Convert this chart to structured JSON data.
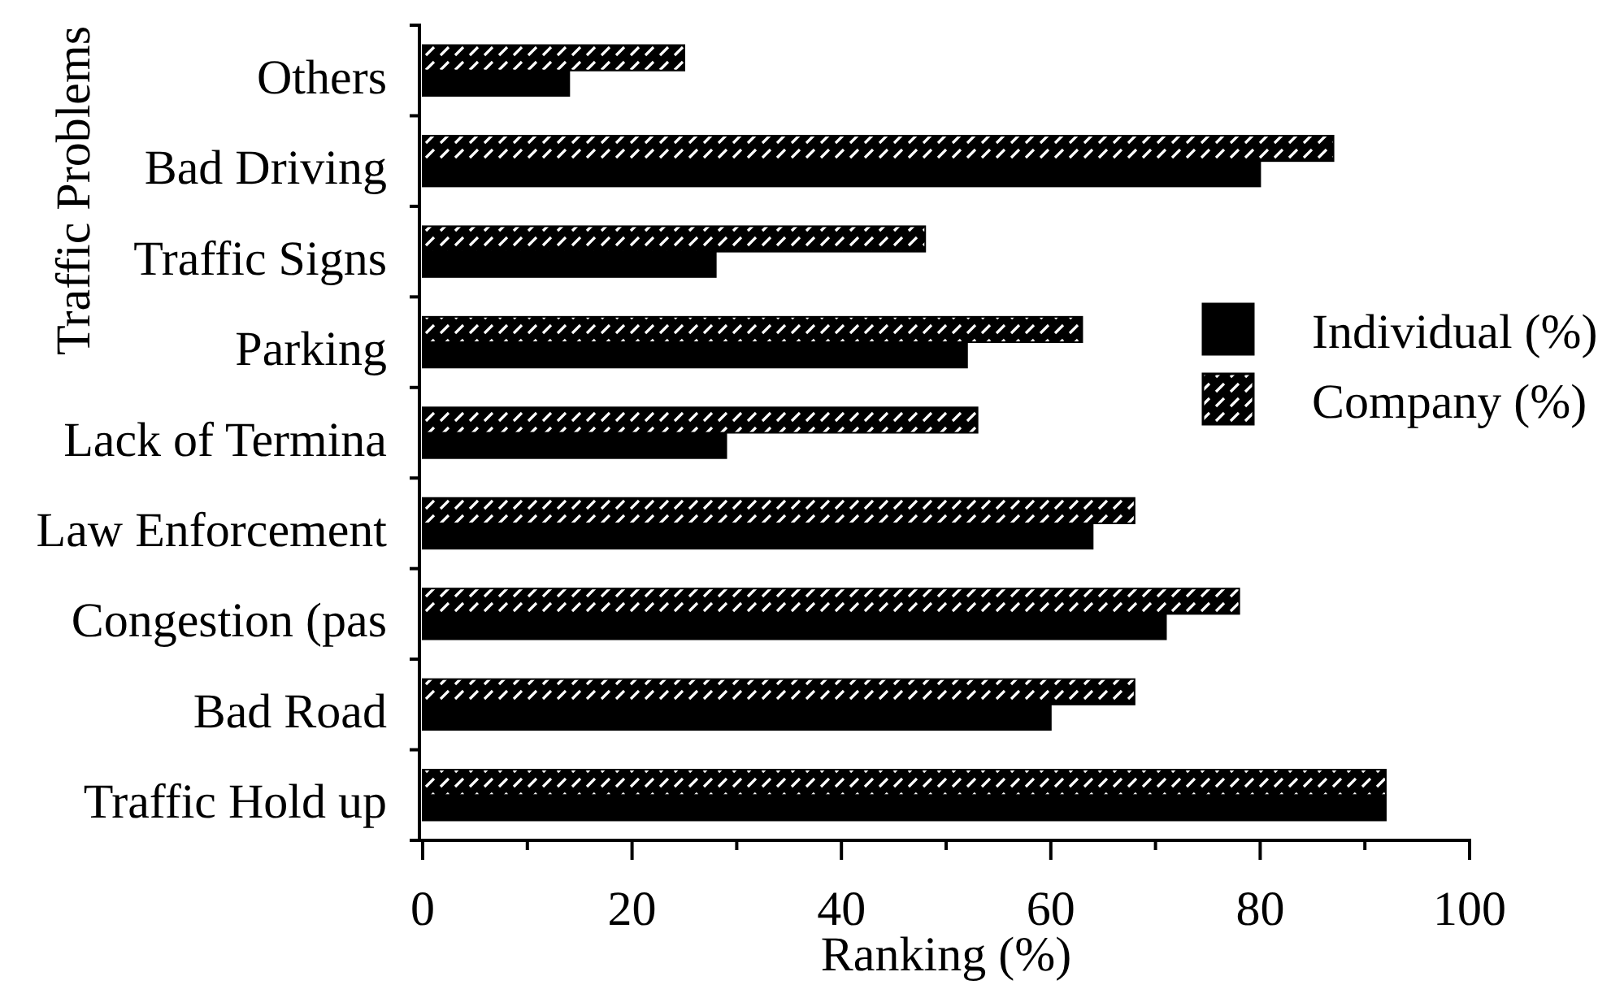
{
  "chart_data": {
    "type": "bar",
    "orientation": "horizontal",
    "xlabel": "Ranking (%)",
    "ylabel": "Traffic Problems",
    "categories": [
      "Others",
      "Bad Driving",
      "Traffic Signs",
      "Parking",
      "Lack of Termina",
      "Law Enforcement",
      "Congestion (pas",
      "Bad Road",
      "Traffic Hold up"
    ],
    "series": [
      {
        "name": "Individual (%)",
        "color": "#000000",
        "values": [
          14,
          80,
          28,
          52,
          29,
          64,
          71,
          60,
          92
        ]
      },
      {
        "name": "Company (%)",
        "color": "#000000",
        "values": [
          25,
          87,
          48,
          63,
          53,
          68,
          78,
          68,
          92
        ]
      }
    ],
    "xlim": [
      0,
      100
    ],
    "xticks": [
      0,
      {
        "value": 10,
        "label": null
      },
      20,
      {
        "value": 30,
        "label": null
      },
      40,
      {
        "value": 50,
        "label": null
      },
      60,
      {
        "value": 70,
        "label": null
      },
      80,
      {
        "value": 90,
        "label": null
      },
      100
    ],
    "legend": "right"
  }
}
